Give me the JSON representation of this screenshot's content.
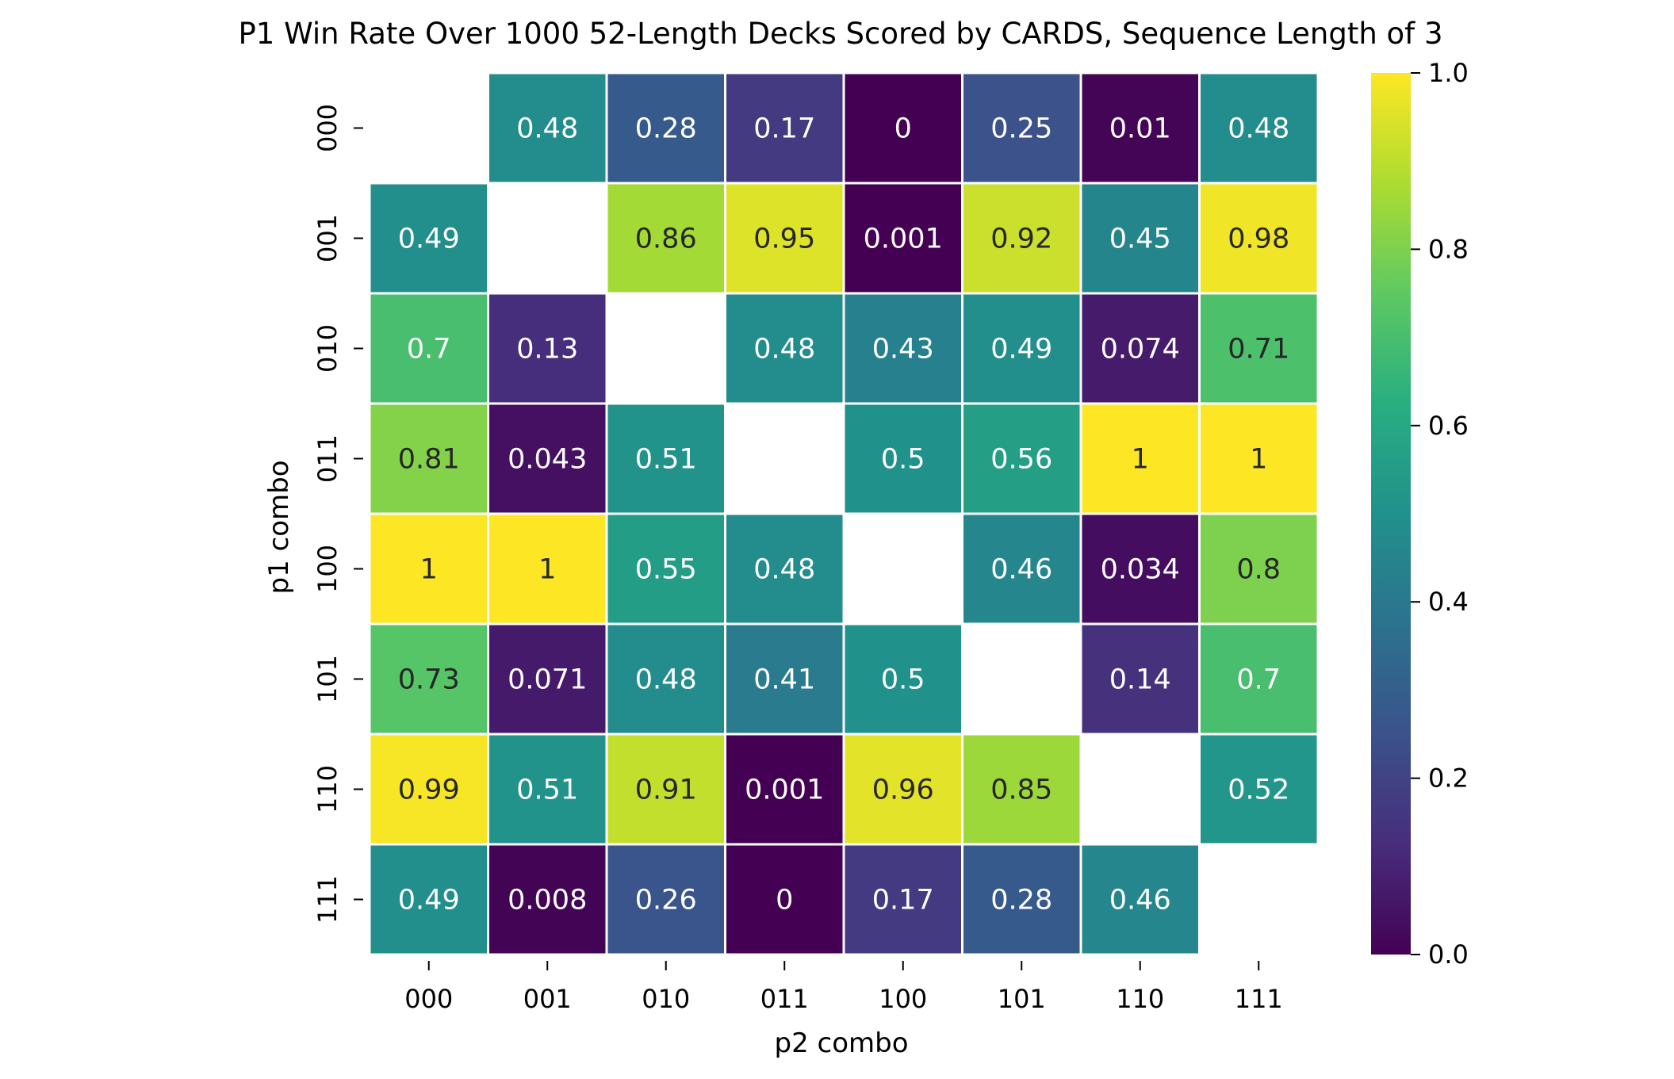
{
  "chart_data": {
    "type": "heatmap",
    "title": "P1 Win Rate Over 1000 52-Length Decks Scored by CARDS, Sequence Length of 3",
    "xlabel": "p2 combo",
    "ylabel": "p1 combo",
    "x_categories": [
      "000",
      "001",
      "010",
      "011",
      "100",
      "101",
      "110",
      "111"
    ],
    "y_categories": [
      "000",
      "001",
      "010",
      "011",
      "100",
      "101",
      "110",
      "111"
    ],
    "values": [
      [
        null,
        0.48,
        0.28,
        0.17,
        0,
        0.25,
        0.01,
        0.48
      ],
      [
        0.49,
        null,
        0.86,
        0.95,
        0.001,
        0.92,
        0.45,
        0.98
      ],
      [
        0.7,
        0.13,
        null,
        0.48,
        0.43,
        0.49,
        0.074,
        0.71
      ],
      [
        0.81,
        0.043,
        0.51,
        null,
        0.5,
        0.56,
        1,
        1
      ],
      [
        1,
        1,
        0.55,
        0.48,
        null,
        0.46,
        0.034,
        0.8
      ],
      [
        0.73,
        0.071,
        0.48,
        0.41,
        0.5,
        null,
        0.14,
        0.7
      ],
      [
        0.99,
        0.51,
        0.91,
        0.001,
        0.96,
        0.85,
        null,
        0.52
      ],
      [
        0.49,
        0.008,
        0.26,
        0,
        0.17,
        0.28,
        0.46,
        null
      ]
    ],
    "colormap": "viridis",
    "colorbar_range": [
      0.0,
      1.0
    ],
    "colorbar_ticks": [
      "0.0",
      "0.2",
      "0.4",
      "0.6",
      "0.8",
      "1.0"
    ],
    "grid": false,
    "dark_text_color": "#262626",
    "light_text_color": "#ffffff"
  }
}
